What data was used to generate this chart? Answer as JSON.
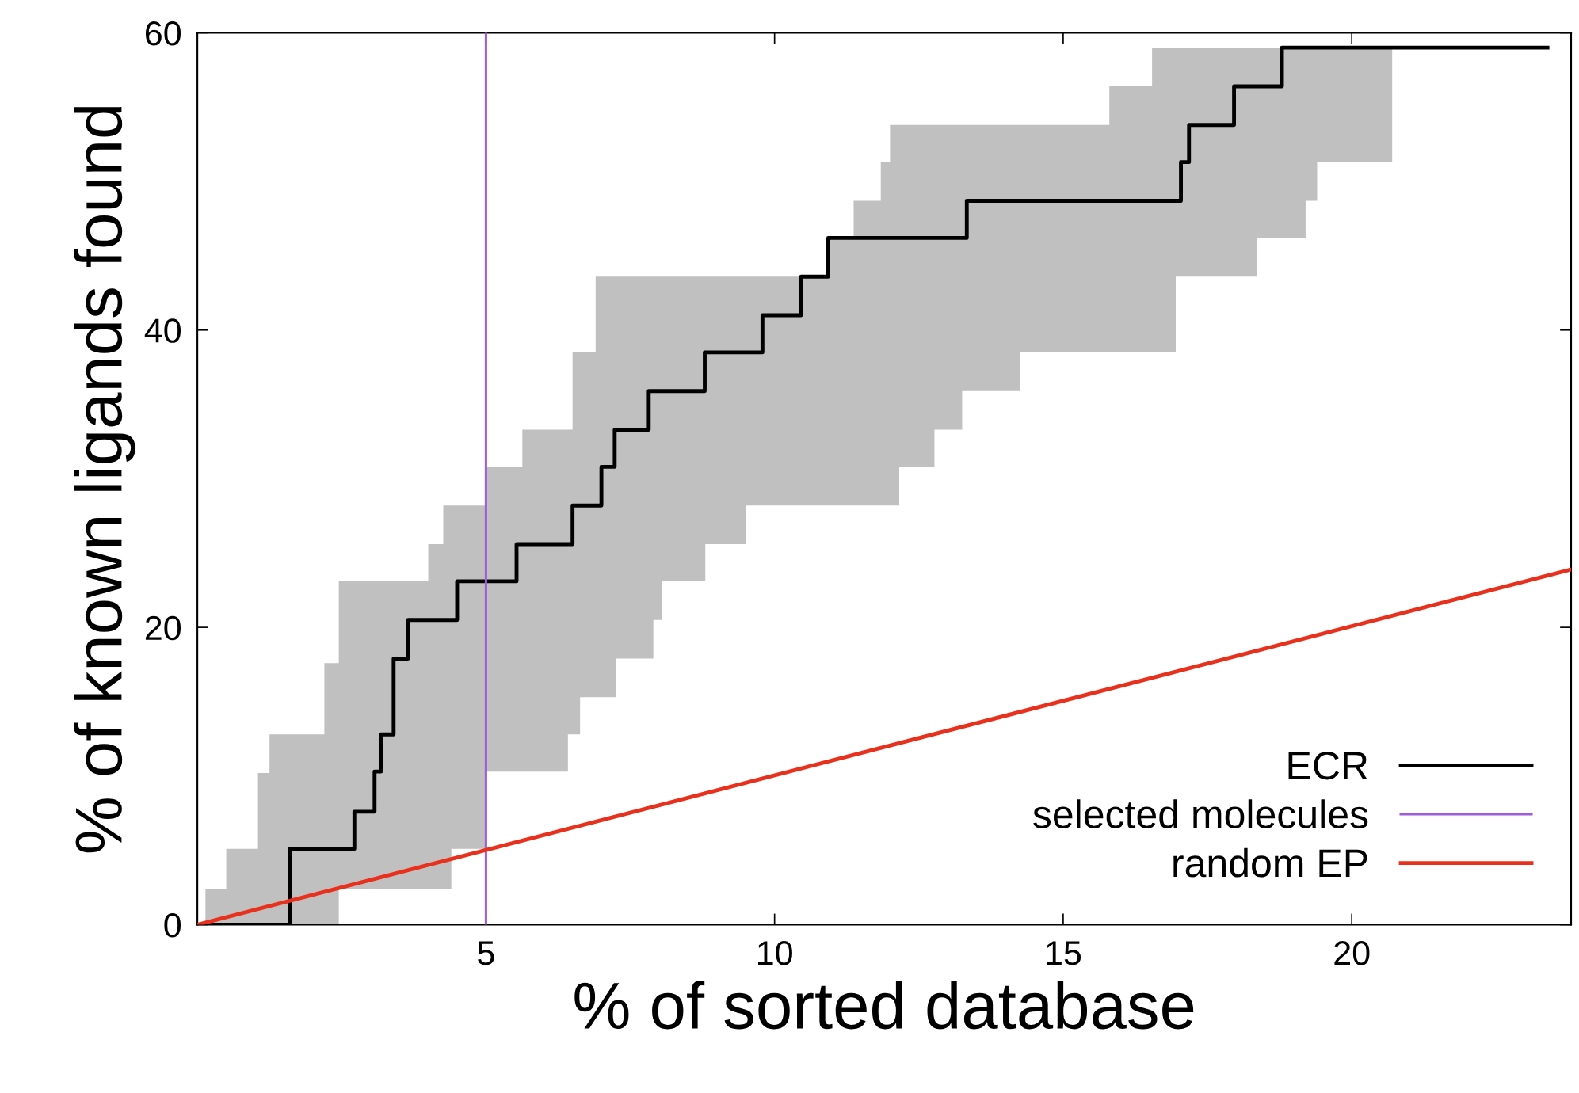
{
  "chart_data": {
    "type": "line",
    "xlabel": "% of sorted database",
    "ylabel": "% of known ligands found",
    "xlim": [
      0,
      23.8
    ],
    "ylim": [
      0,
      60
    ],
    "xticks": [
      5,
      10,
      15,
      20
    ],
    "yticks": [
      0,
      20,
      40,
      60
    ],
    "grid": false,
    "legend": "bottom right",
    "marker": "none",
    "line_style": "solid",
    "series": [
      {
        "name": "ECR",
        "type": "step",
        "color": "#000000",
        "x": [
          0,
          0.14,
          0.5,
          1.05,
          1.25,
          1.6,
          2.2,
          2.45,
          2.72,
          3.07,
          3.18,
          3.4,
          3.65,
          4.0,
          4.26,
          4.4,
          4.5,
          5.0,
          5.53,
          5.63,
          6.42,
          6.5,
          6.63,
          6.9,
          7.0,
          7.23,
          7.25,
          7.82,
          7.9,
          8.05,
          8.79,
          8.8,
          9.5,
          9.79,
          10.46,
          10.93,
          11.37,
          11.84,
          12.0,
          12.16,
          12.77,
          13.25,
          13.33,
          14.26,
          15.8,
          16.54,
          16.95,
          17.04,
          17.18,
          17.96,
          18.35,
          18.79,
          19.2,
          19.4,
          20.7,
          23.39
        ],
        "values": [
          0,
          0,
          0,
          0,
          0,
          5.1,
          5.1,
          5.1,
          7.6,
          10.3,
          12.8,
          17.9,
          20.5,
          20.5,
          20.5,
          20.5,
          23.1,
          23.1,
          25.6,
          25.6,
          25.6,
          28.2,
          28.2,
          28.2,
          30.8,
          33.3,
          33.3,
          35.9,
          35.9,
          35.9,
          38.5,
          38.5,
          38.5,
          41.0,
          43.6,
          46.2,
          46.2,
          46.2,
          46.2,
          46.2,
          46.2,
          46.2,
          48.7,
          48.7,
          48.7,
          48.7,
          48.7,
          51.3,
          53.8,
          56.4,
          56.4,
          59.0,
          59.0,
          59.0,
          59.0,
          59.0
        ],
        "lower": [
          0,
          0,
          0,
          0,
          0,
          0,
          0,
          2.4,
          2.4,
          2.4,
          2.4,
          2.4,
          2.4,
          2.4,
          2.4,
          5.1,
          5.1,
          10.3,
          10.3,
          10.3,
          12.8,
          12.8,
          15.3,
          15.3,
          15.3,
          15.3,
          17.9,
          17.9,
          20.5,
          23.1,
          23.1,
          25.6,
          28.2,
          28.2,
          28.2,
          28.2,
          28.2,
          28.2,
          28.2,
          30.8,
          33.3,
          35.9,
          35.9,
          38.5,
          38.5,
          38.5,
          43.6,
          43.6,
          43.6,
          43.6,
          46.2,
          46.2,
          48.7,
          51.3,
          51.3,
          null
        ],
        "upper": [
          0,
          2.4,
          5.1,
          10.2,
          12.8,
          12.8,
          17.6,
          23.1,
          23.1,
          23.1,
          23.1,
          23.1,
          23.1,
          25.6,
          28.2,
          28.2,
          28.2,
          30.8,
          30.8,
          33.3,
          33.3,
          38.5,
          38.5,
          43.6,
          43.6,
          43.6,
          43.6,
          43.6,
          43.6,
          43.6,
          43.6,
          43.6,
          43.6,
          43.6,
          43.6,
          46.2,
          48.7,
          51.3,
          53.8,
          53.8,
          53.8,
          53.8,
          53.8,
          53.8,
          56.4,
          59.0,
          59.0,
          59.0,
          59.0,
          59.0,
          59.0,
          59.0,
          59.0,
          59.0,
          59.0,
          null
        ]
      },
      {
        "name": "selected molecules",
        "color": "#a05cdc",
        "x": [
          5,
          5
        ],
        "values": [
          0,
          60
        ]
      },
      {
        "name": "random EP",
        "color": "#e8301c",
        "x": [
          0,
          23.8
        ],
        "values": [
          0,
          23.9
        ]
      }
    ]
  }
}
